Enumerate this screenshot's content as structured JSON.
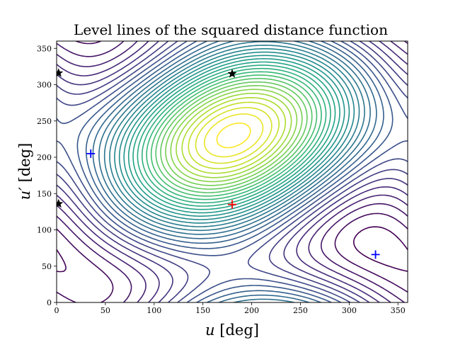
{
  "chart_data": {
    "type": "contour",
    "title": "Level lines of the squared distance function",
    "xlabel_var": "u",
    "xlabel_unit": "[deg]",
    "ylabel_var": "u′",
    "ylabel_unit": "[deg]",
    "xlim": [
      0,
      360
    ],
    "ylim": [
      0,
      360
    ],
    "xticks": [
      0,
      50,
      100,
      150,
      200,
      250,
      300,
      350
    ],
    "yticks": [
      0,
      50,
      100,
      150,
      200,
      250,
      300,
      350
    ],
    "colormap": "viridis",
    "grid": false,
    "maximum_marker": {
      "x": 180,
      "y": 135,
      "symbol": "plus",
      "color": "#ff0000"
    },
    "minimum_markers": [
      {
        "x": 35,
        "y": 205,
        "symbol": "plus",
        "color": "#0000ff"
      },
      {
        "x": 327,
        "y": 66,
        "symbol": "plus",
        "color": "#0000ff"
      }
    ],
    "saddle_markers": [
      {
        "x": 180,
        "y": 315,
        "symbol": "star",
        "color": "#000000"
      },
      {
        "x": 2,
        "y": 316,
        "symbol": "star",
        "color": "#000000"
      },
      {
        "x": 2,
        "y": 136,
        "symbol": "star",
        "color": "#000000"
      }
    ]
  }
}
